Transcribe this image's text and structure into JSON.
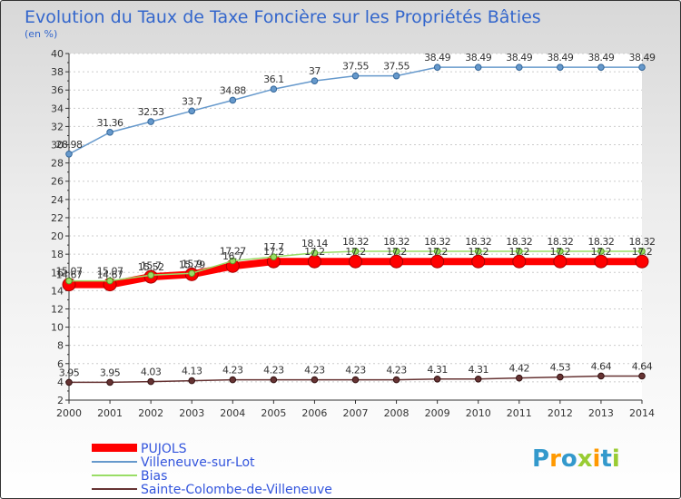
{
  "chart_data": {
    "type": "line",
    "title": "Evolution du Taux de Taxe Foncière sur les Propriétés Bâties",
    "subtitle": "(en %)",
    "xlabel": "",
    "ylabel": "",
    "ylim": [
      2,
      40
    ],
    "yticks": [
      2,
      4,
      6,
      8,
      10,
      12,
      14,
      16,
      18,
      20,
      22,
      24,
      26,
      28,
      30,
      32,
      34,
      36,
      38,
      40
    ],
    "x": [
      "2000",
      "2001",
      "2002",
      "2003",
      "2004",
      "2005",
      "2006",
      "2007",
      "2008",
      "2009",
      "2010",
      "2011",
      "2012",
      "2013",
      "2014"
    ],
    "grid": "horizontal dashed",
    "legend_position": "bottom-left",
    "series": [
      {
        "name": "PUJOLS",
        "color": "#ff0000",
        "values": [
          14.67,
          14.67,
          15.52,
          15.79,
          16.7,
          17.2,
          17.2,
          17.2,
          17.2,
          17.2,
          17.2,
          17.2,
          17.2,
          17.2,
          17.2
        ],
        "labels": [
          "14.67",
          "14.67",
          "15.52",
          "15.79",
          "16.7",
          "17.2",
          "17.2",
          "17.2",
          "17.2",
          "17.2",
          "17.2",
          "17.2",
          "17.2",
          "17.2",
          "17.2"
        ]
      },
      {
        "name": "Villeneuve-sur-Lot",
        "color": "#6699cc",
        "values": [
          28.98,
          31.36,
          32.53,
          33.7,
          34.88,
          36.1,
          37,
          37.55,
          37.55,
          38.49,
          38.49,
          38.49,
          38.49,
          38.49,
          38.49
        ],
        "labels": [
          "28.98",
          "31.36",
          "32.53",
          "33.7",
          "34.88",
          "36.1",
          "37",
          "37.55",
          "37.55",
          "38.49",
          "38.49",
          "38.49",
          "38.49",
          "38.49",
          "38.49"
        ]
      },
      {
        "name": "Bias",
        "color": "#99dd66",
        "values": [
          15.07,
          15.07,
          15.7,
          15.9,
          17.27,
          17.7,
          18.14,
          18.32,
          18.32,
          18.32,
          18.32,
          18.32,
          18.32,
          18.32,
          18.32
        ],
        "labels": [
          "15.07",
          "15.07",
          "15.7",
          "15.9",
          "17.27",
          "17.7",
          "18.14",
          "18.32",
          "18.32",
          "18.32",
          "18.32",
          "18.32",
          "18.32",
          "18.32",
          "18.32"
        ]
      },
      {
        "name": "Sainte-Colombe-de-Villeneuve",
        "color": "#663333",
        "values": [
          3.95,
          3.95,
          4.03,
          4.13,
          4.23,
          4.23,
          4.23,
          4.23,
          4.23,
          4.31,
          4.31,
          4.42,
          4.53,
          4.64,
          4.64
        ],
        "labels": [
          "3.95",
          "3.95",
          "4.03",
          "4.13",
          "4.23",
          "4.23",
          "4.23",
          "4.23",
          "4.23",
          "4.31",
          "4.31",
          "4.42",
          "4.53",
          "4.64",
          "4.64"
        ]
      }
    ]
  },
  "branding": {
    "logo_text": "Proxiti",
    "letter_colors": [
      "#3399cc",
      "#ff9900",
      "#3399cc",
      "#99cc33",
      "#ff9900",
      "#3399cc",
      "#99cc33"
    ]
  }
}
